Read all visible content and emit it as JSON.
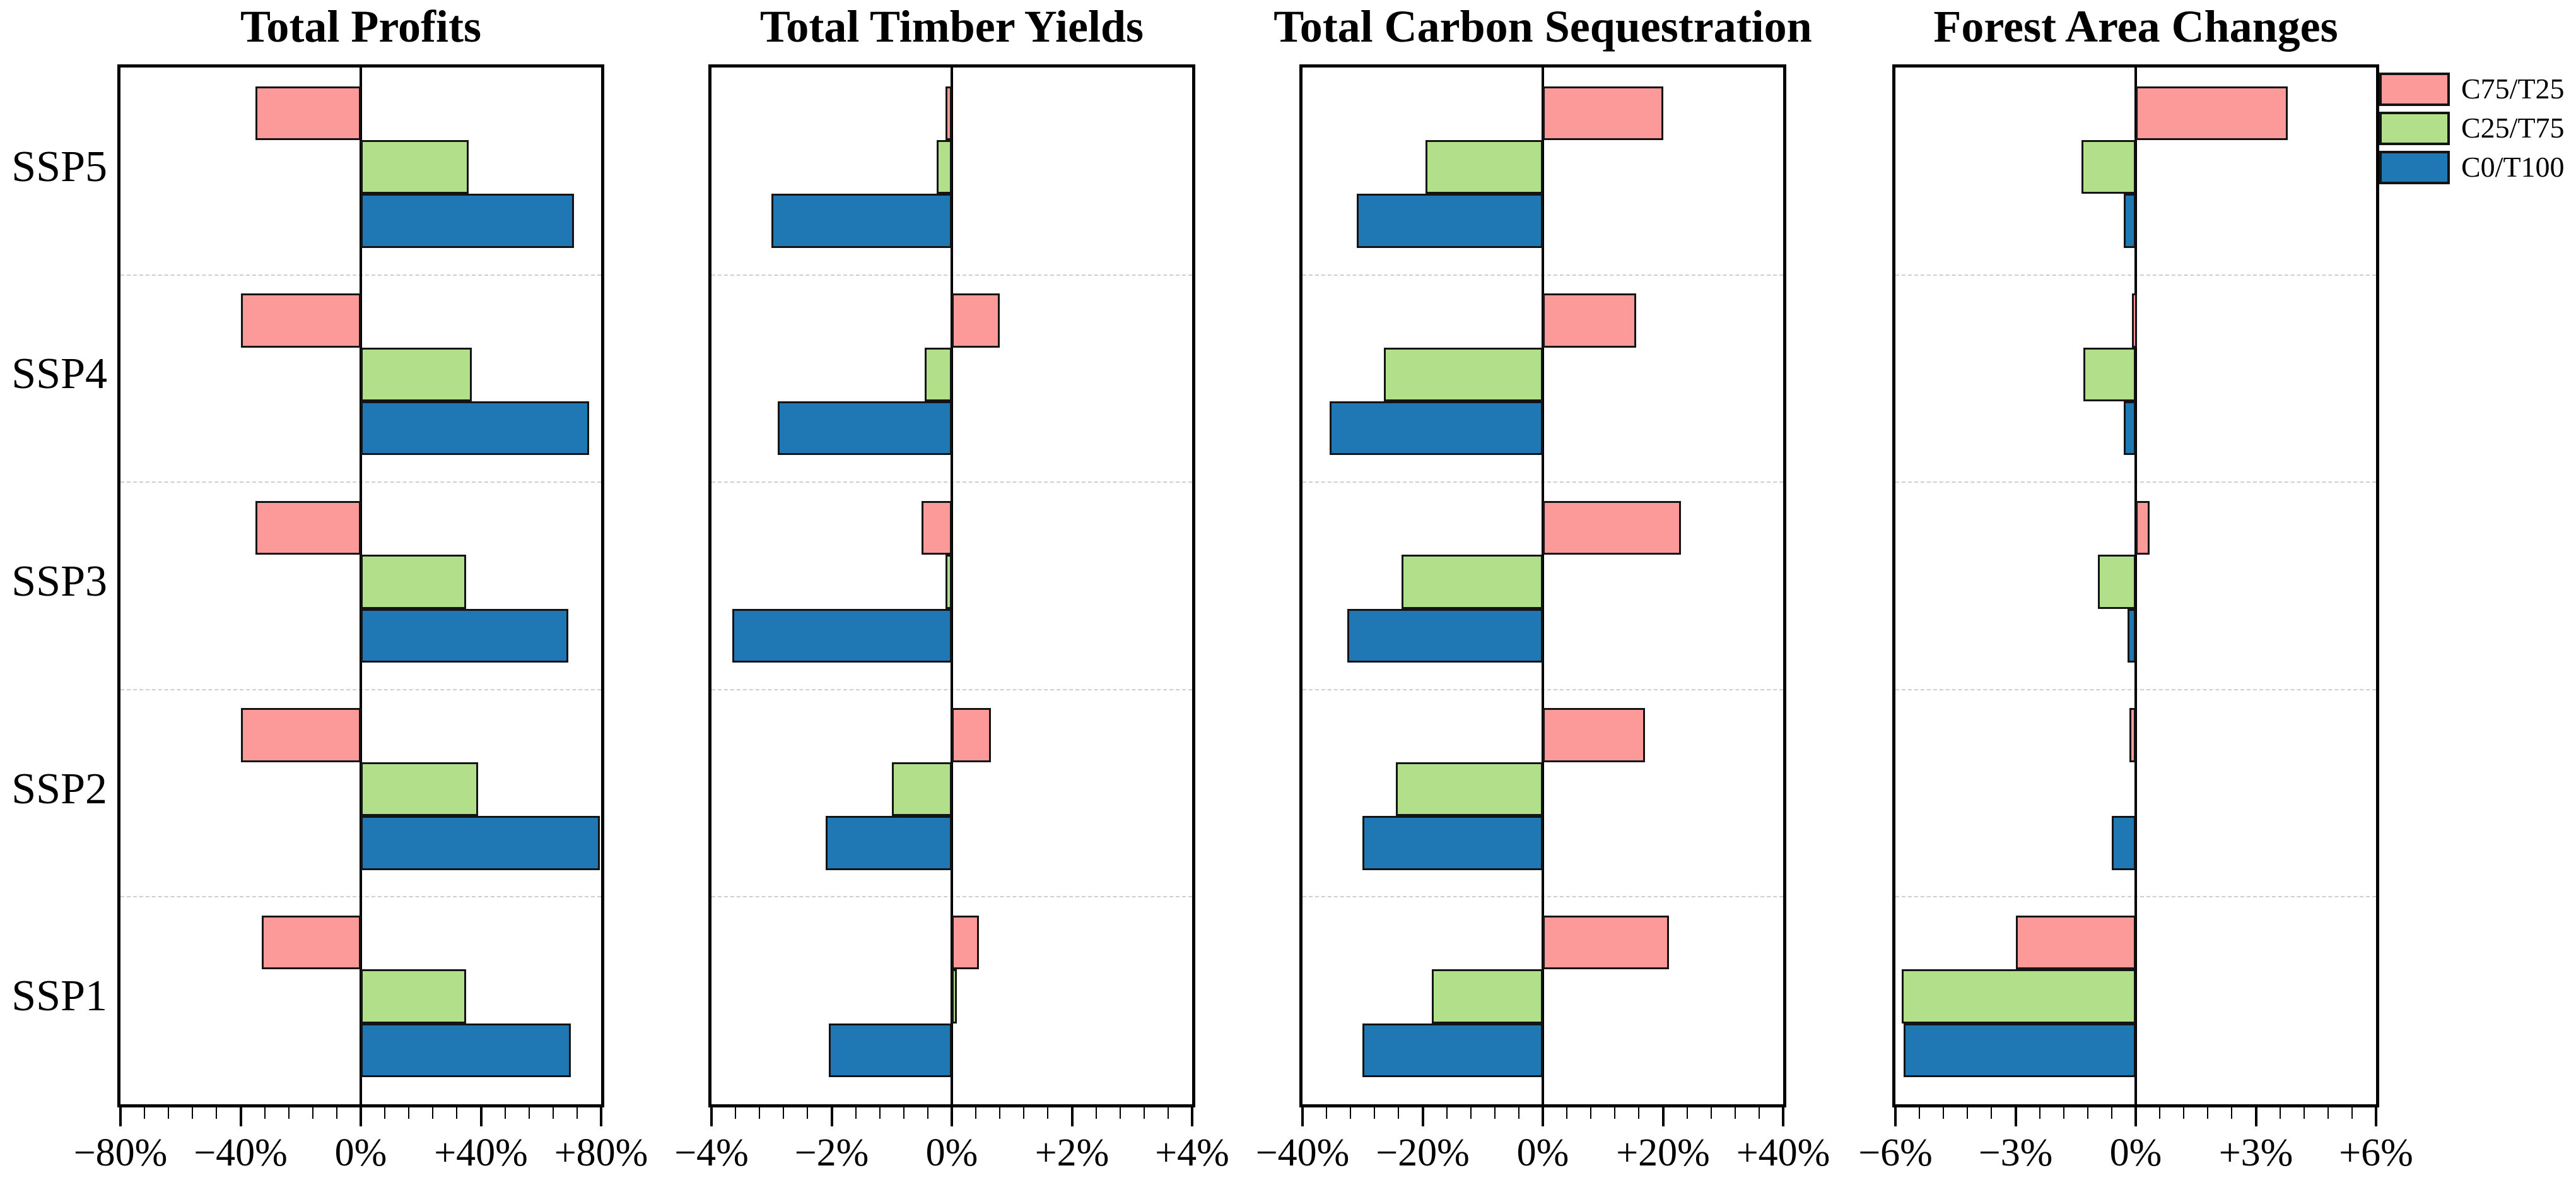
{
  "figure": {
    "background": "#ffffff",
    "row_labels": [
      "SSP5",
      "SSP4",
      "SSP3",
      "SSP2",
      "SSP1"
    ],
    "legend": {
      "position": "top-right",
      "entries": [
        {
          "label": "C75/T25",
          "color": "#FB9A99"
        },
        {
          "label": "C25/T75",
          "color": "#B2DF8A"
        },
        {
          "label": "C0/T100",
          "color": "#1F78B4"
        }
      ]
    },
    "style": {
      "bar_border_color": "#141414",
      "axis_color": "#000000",
      "separator_color": "#cfcfcf"
    }
  },
  "chart_data": [
    {
      "type": "bar",
      "orientation": "horizontal",
      "title": "Total Profits",
      "unit": "%",
      "categories": [
        "SSP5",
        "SSP4",
        "SSP3",
        "SSP2",
        "SSP1"
      ],
      "xlim": [
        -80,
        80
      ],
      "grid": "dashed-row-separators",
      "xticks": [
        {
          "value": -80,
          "label": "−80%"
        },
        {
          "value": -40,
          "label": "−40%"
        },
        {
          "value": 0,
          "label": "0%"
        },
        {
          "value": 40,
          "label": "+40%"
        },
        {
          "value": 80,
          "label": "+80%"
        }
      ],
      "series": [
        {
          "name": "C75/T25",
          "color": "#FB9A99",
          "values": [
            -35,
            -40,
            -35,
            -40,
            -33
          ]
        },
        {
          "name": "C25/T75",
          "color": "#B2DF8A",
          "values": [
            36,
            37,
            35,
            39,
            35
          ]
        },
        {
          "name": "C0/T100",
          "color": "#1F78B4",
          "values": [
            71,
            76,
            69,
            79.5,
            70
          ]
        }
      ]
    },
    {
      "type": "bar",
      "orientation": "horizontal",
      "title": "Total Timber Yields",
      "unit": "%",
      "categories": [
        "SSP5",
        "SSP4",
        "SSP3",
        "SSP2",
        "SSP1"
      ],
      "xlim": [
        -4,
        4
      ],
      "grid": "dashed-row-separators",
      "xticks": [
        {
          "value": -4,
          "label": "−4%"
        },
        {
          "value": -2,
          "label": "−2%"
        },
        {
          "value": 0,
          "label": "0%"
        },
        {
          "value": 2,
          "label": "+2%"
        },
        {
          "value": 4,
          "label": "+4%"
        }
      ],
      "series": [
        {
          "name": "C75/T25",
          "color": "#FB9A99",
          "values": [
            -0.1,
            0.8,
            -0.5,
            0.65,
            0.45
          ]
        },
        {
          "name": "C25/T75",
          "color": "#B2DF8A",
          "values": [
            -0.25,
            -0.45,
            -0.1,
            -1.0,
            0.08
          ]
        },
        {
          "name": "C0/T100",
          "color": "#1F78B4",
          "values": [
            -3.0,
            -2.9,
            -3.65,
            -2.1,
            -2.05
          ]
        }
      ]
    },
    {
      "type": "bar",
      "orientation": "horizontal",
      "title": "Total Carbon Sequestration",
      "unit": "%",
      "categories": [
        "SSP5",
        "SSP4",
        "SSP3",
        "SSP2",
        "SSP1"
      ],
      "xlim": [
        -40,
        40
      ],
      "grid": "dashed-row-separators",
      "xticks": [
        {
          "value": -40,
          "label": "−40%"
        },
        {
          "value": -20,
          "label": "−20%"
        },
        {
          "value": 0,
          "label": "0%"
        },
        {
          "value": 20,
          "label": "+20%"
        },
        {
          "value": 40,
          "label": "+40%"
        }
      ],
      "series": [
        {
          "name": "C75/T25",
          "color": "#FB9A99",
          "values": [
            20,
            15.5,
            23,
            17,
            21
          ]
        },
        {
          "name": "C25/T75",
          "color": "#B2DF8A",
          "values": [
            -19.5,
            -26.5,
            -23.5,
            -24.5,
            -18.5
          ]
        },
        {
          "name": "C0/T100",
          "color": "#1F78B4",
          "values": [
            -31,
            -35.5,
            -32.5,
            -30,
            -30
          ]
        }
      ]
    },
    {
      "type": "bar",
      "orientation": "horizontal",
      "title": "Forest Area Changes",
      "unit": "%",
      "categories": [
        "SSP5",
        "SSP4",
        "SSP3",
        "SSP2",
        "SSP1"
      ],
      "xlim": [
        -6,
        6
      ],
      "grid": "dashed-row-separators",
      "xticks": [
        {
          "value": -6,
          "label": "−6%"
        },
        {
          "value": -3,
          "label": "−3%"
        },
        {
          "value": 0,
          "label": "0%"
        },
        {
          "value": 3,
          "label": "+3%"
        },
        {
          "value": 6,
          "label": "+6%"
        }
      ],
      "series": [
        {
          "name": "C75/T25",
          "color": "#FB9A99",
          "values": [
            3.8,
            -0.1,
            0.35,
            -0.15,
            -3.0
          ]
        },
        {
          "name": "C25/T75",
          "color": "#B2DF8A",
          "values": [
            -1.35,
            -1.3,
            -0.95,
            0,
            -5.85
          ]
        },
        {
          "name": "C0/T100",
          "color": "#1F78B4",
          "values": [
            -0.3,
            -0.3,
            -0.2,
            -0.6,
            -5.8
          ]
        }
      ]
    }
  ]
}
